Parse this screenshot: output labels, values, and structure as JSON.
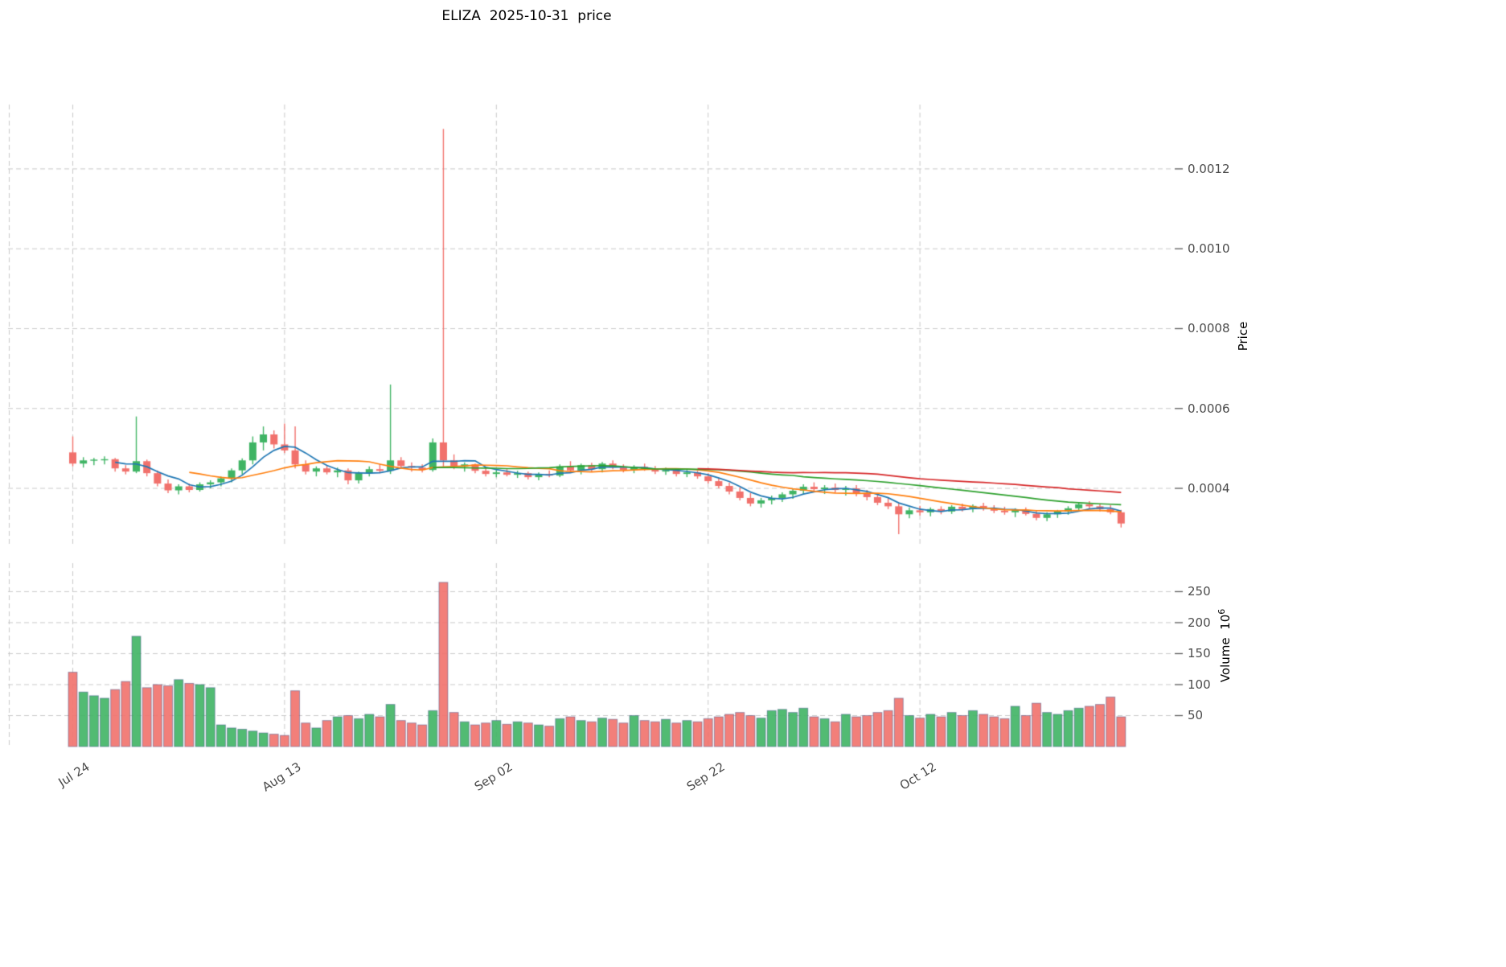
{
  "chart_data": {
    "type": "candlestick+volume",
    "title": "ELIZA  2025-10-31  price",
    "legend_position": "none",
    "grid": true,
    "grid_color": "#c9c9c9",
    "tick_color": "#4a4a4a",
    "up_color": "#3fb464",
    "down_color": "#f1716c",
    "volume_bar_edge_color": "rgba(50,70,130,0.45)",
    "price_unit": "1e-4",
    "volume_unit": "1e6",
    "price_axis": {
      "label": "Price",
      "ticks": [
        "0.0004",
        "0.0006",
        "0.0008",
        "0.0010",
        "0.0012"
      ],
      "tick_values": [
        4,
        6,
        8,
        10,
        12
      ],
      "range": [
        2.53,
        13.61
      ]
    },
    "volume_axis": {
      "label": "Volume",
      "unit_base": "10",
      "unit_exp": "6",
      "ticks": [
        50,
        100,
        150,
        200,
        250
      ],
      "range": [
        0,
        296
      ]
    },
    "x_axis": {
      "first_candle_date": "Jul 24",
      "last_candle_date": "Oct 31",
      "ticks": [
        {
          "day": -6,
          "label": ""
        },
        {
          "day": 0,
          "label": "Jul 24"
        },
        {
          "day": 20,
          "label": "Aug 13"
        },
        {
          "day": 40,
          "label": "Sep 02"
        },
        {
          "day": 60,
          "label": "Sep 22"
        },
        {
          "day": 80,
          "label": "Oct 12"
        }
      ]
    },
    "ma_lines": [
      {
        "window": 5,
        "color": "#1f77b4"
      },
      {
        "window": 12,
        "color": "#ff7f0e"
      },
      {
        "window": 35,
        "color": "#2ca02c"
      },
      {
        "window": 60,
        "color": "#d62728"
      }
    ],
    "candles_format": [
      "open",
      "high",
      "low",
      "close",
      "volume"
    ],
    "candles": [
      [
        4.9,
        5.3,
        4.55,
        4.62,
        120
      ],
      [
        4.62,
        4.78,
        4.52,
        4.7,
        88
      ],
      [
        4.7,
        4.76,
        4.58,
        4.72,
        82
      ],
      [
        4.72,
        4.8,
        4.6,
        4.73,
        78
      ],
      [
        4.73,
        4.76,
        4.42,
        4.5,
        92
      ],
      [
        4.5,
        4.58,
        4.35,
        4.42,
        105
      ],
      [
        4.42,
        5.8,
        4.38,
        4.68,
        178
      ],
      [
        4.68,
        4.72,
        4.3,
        4.38,
        95
      ],
      [
        4.38,
        4.45,
        4.05,
        4.12,
        100
      ],
      [
        4.12,
        4.22,
        3.88,
        3.95,
        98
      ],
      [
        3.95,
        4.1,
        3.85,
        4.05,
        108
      ],
      [
        4.05,
        4.12,
        3.9,
        3.96,
        102
      ],
      [
        3.96,
        4.15,
        3.92,
        4.1,
        100
      ],
      [
        4.1,
        4.2,
        4.0,
        4.15,
        95
      ],
      [
        4.15,
        4.3,
        4.05,
        4.25,
        35
      ],
      [
        4.25,
        4.5,
        4.15,
        4.45,
        30
      ],
      [
        4.45,
        4.75,
        4.35,
        4.7,
        28
      ],
      [
        4.7,
        5.3,
        4.6,
        5.15,
        25
      ],
      [
        5.15,
        5.55,
        4.95,
        5.35,
        22
      ],
      [
        5.35,
        5.45,
        5.0,
        5.1,
        20
      ],
      [
        5.1,
        5.62,
        4.88,
        4.95,
        18
      ],
      [
        4.95,
        5.55,
        4.5,
        4.6,
        90
      ],
      [
        4.6,
        4.7,
        4.35,
        4.42,
        38
      ],
      [
        4.42,
        4.55,
        4.3,
        4.5,
        30
      ],
      [
        4.5,
        4.58,
        4.35,
        4.4,
        42
      ],
      [
        4.4,
        4.52,
        4.28,
        4.45,
        48
      ],
      [
        4.45,
        4.5,
        4.1,
        4.2,
        50
      ],
      [
        4.2,
        4.42,
        4.12,
        4.38,
        45
      ],
      [
        4.38,
        4.55,
        4.3,
        4.48,
        52
      ],
      [
        4.48,
        4.6,
        4.38,
        4.44,
        48
      ],
      [
        4.44,
        6.6,
        4.36,
        4.7,
        68
      ],
      [
        4.7,
        4.78,
        4.5,
        4.56,
        42
      ],
      [
        4.56,
        4.65,
        4.42,
        4.52,
        38
      ],
      [
        4.52,
        4.6,
        4.4,
        4.46,
        35
      ],
      [
        4.46,
        5.25,
        4.42,
        5.15,
        58
      ],
      [
        5.15,
        13.0,
        4.55,
        4.7,
        265
      ],
      [
        4.7,
        4.85,
        4.48,
        4.55,
        55
      ],
      [
        4.55,
        4.65,
        4.42,
        4.6,
        40
      ],
      [
        4.6,
        4.62,
        4.38,
        4.44,
        35
      ],
      [
        4.44,
        4.52,
        4.3,
        4.36,
        38
      ],
      [
        4.36,
        4.46,
        4.28,
        4.4,
        42
      ],
      [
        4.4,
        4.48,
        4.3,
        4.34,
        36
      ],
      [
        4.34,
        4.44,
        4.26,
        4.38,
        40
      ],
      [
        4.38,
        4.42,
        4.22,
        4.28,
        38
      ],
      [
        4.28,
        4.4,
        4.2,
        4.36,
        35
      ],
      [
        4.36,
        4.45,
        4.28,
        4.32,
        33
      ],
      [
        4.32,
        4.6,
        4.28,
        4.55,
        45
      ],
      [
        4.55,
        4.68,
        4.4,
        4.45,
        48
      ],
      [
        4.45,
        4.62,
        4.35,
        4.58,
        42
      ],
      [
        4.58,
        4.64,
        4.42,
        4.48,
        40
      ],
      [
        4.48,
        4.66,
        4.4,
        4.62,
        46
      ],
      [
        4.62,
        4.7,
        4.48,
        4.52,
        44
      ],
      [
        4.52,
        4.6,
        4.4,
        4.46,
        38
      ],
      [
        4.46,
        4.58,
        4.38,
        4.54,
        50
      ],
      [
        4.54,
        4.62,
        4.44,
        4.48,
        42
      ],
      [
        4.48,
        4.56,
        4.36,
        4.42,
        40
      ],
      [
        4.42,
        4.52,
        4.34,
        4.46,
        44
      ],
      [
        4.46,
        4.5,
        4.3,
        4.36,
        38
      ],
      [
        4.36,
        4.46,
        4.28,
        4.4,
        42
      ],
      [
        4.4,
        4.44,
        4.24,
        4.3,
        40
      ],
      [
        4.3,
        4.38,
        4.12,
        4.18,
        45
      ],
      [
        4.18,
        4.26,
        4.0,
        4.06,
        48
      ],
      [
        4.06,
        4.14,
        3.85,
        3.92,
        52
      ],
      [
        3.92,
        4.02,
        3.7,
        3.76,
        55
      ],
      [
        3.76,
        3.88,
        3.55,
        3.62,
        50
      ],
      [
        3.62,
        3.76,
        3.52,
        3.7,
        46
      ],
      [
        3.7,
        3.82,
        3.6,
        3.76,
        58
      ],
      [
        3.76,
        3.9,
        3.66,
        3.85,
        60
      ],
      [
        3.85,
        4.0,
        3.74,
        3.94,
        55
      ],
      [
        3.94,
        4.1,
        3.84,
        4.04,
        62
      ],
      [
        4.04,
        4.15,
        3.92,
        3.98,
        48
      ],
      [
        3.98,
        4.08,
        3.86,
        4.02,
        45
      ],
      [
        4.02,
        4.12,
        3.9,
        3.96,
        40
      ],
      [
        3.96,
        4.06,
        3.82,
        4.0,
        52
      ],
      [
        4.0,
        4.08,
        3.8,
        3.86,
        48
      ],
      [
        3.86,
        3.96,
        3.7,
        3.78,
        50
      ],
      [
        3.78,
        3.88,
        3.58,
        3.64,
        55
      ],
      [
        3.64,
        3.76,
        3.48,
        3.55,
        58
      ],
      [
        3.55,
        3.62,
        2.85,
        3.35,
        78
      ],
      [
        3.35,
        3.52,
        3.25,
        3.45,
        50
      ],
      [
        3.45,
        3.56,
        3.32,
        3.4,
        46
      ],
      [
        3.4,
        3.52,
        3.3,
        3.48,
        52
      ],
      [
        3.48,
        3.55,
        3.35,
        3.42,
        48
      ],
      [
        3.42,
        3.58,
        3.36,
        3.54,
        55
      ],
      [
        3.54,
        3.62,
        3.42,
        3.48,
        50
      ],
      [
        3.48,
        3.6,
        3.4,
        3.56,
        58
      ],
      [
        3.56,
        3.64,
        3.44,
        3.5,
        52
      ],
      [
        3.5,
        3.58,
        3.38,
        3.44,
        48
      ],
      [
        3.44,
        3.54,
        3.34,
        3.4,
        45
      ],
      [
        3.4,
        3.5,
        3.28,
        3.46,
        65
      ],
      [
        3.46,
        3.52,
        3.32,
        3.36,
        50
      ],
      [
        3.36,
        3.44,
        3.2,
        3.26,
        70
      ],
      [
        3.26,
        3.4,
        3.18,
        3.35,
        55
      ],
      [
        3.35,
        3.46,
        3.26,
        3.42,
        52
      ],
      [
        3.42,
        3.55,
        3.34,
        3.5,
        58
      ],
      [
        3.5,
        3.64,
        3.42,
        3.6,
        62
      ],
      [
        3.6,
        3.68,
        3.48,
        3.55,
        65
      ],
      [
        3.55,
        3.62,
        3.42,
        3.48,
        68
      ],
      [
        3.48,
        3.58,
        3.35,
        3.4,
        80
      ],
      [
        3.4,
        3.46,
        3.02,
        3.12,
        48
      ]
    ]
  }
}
